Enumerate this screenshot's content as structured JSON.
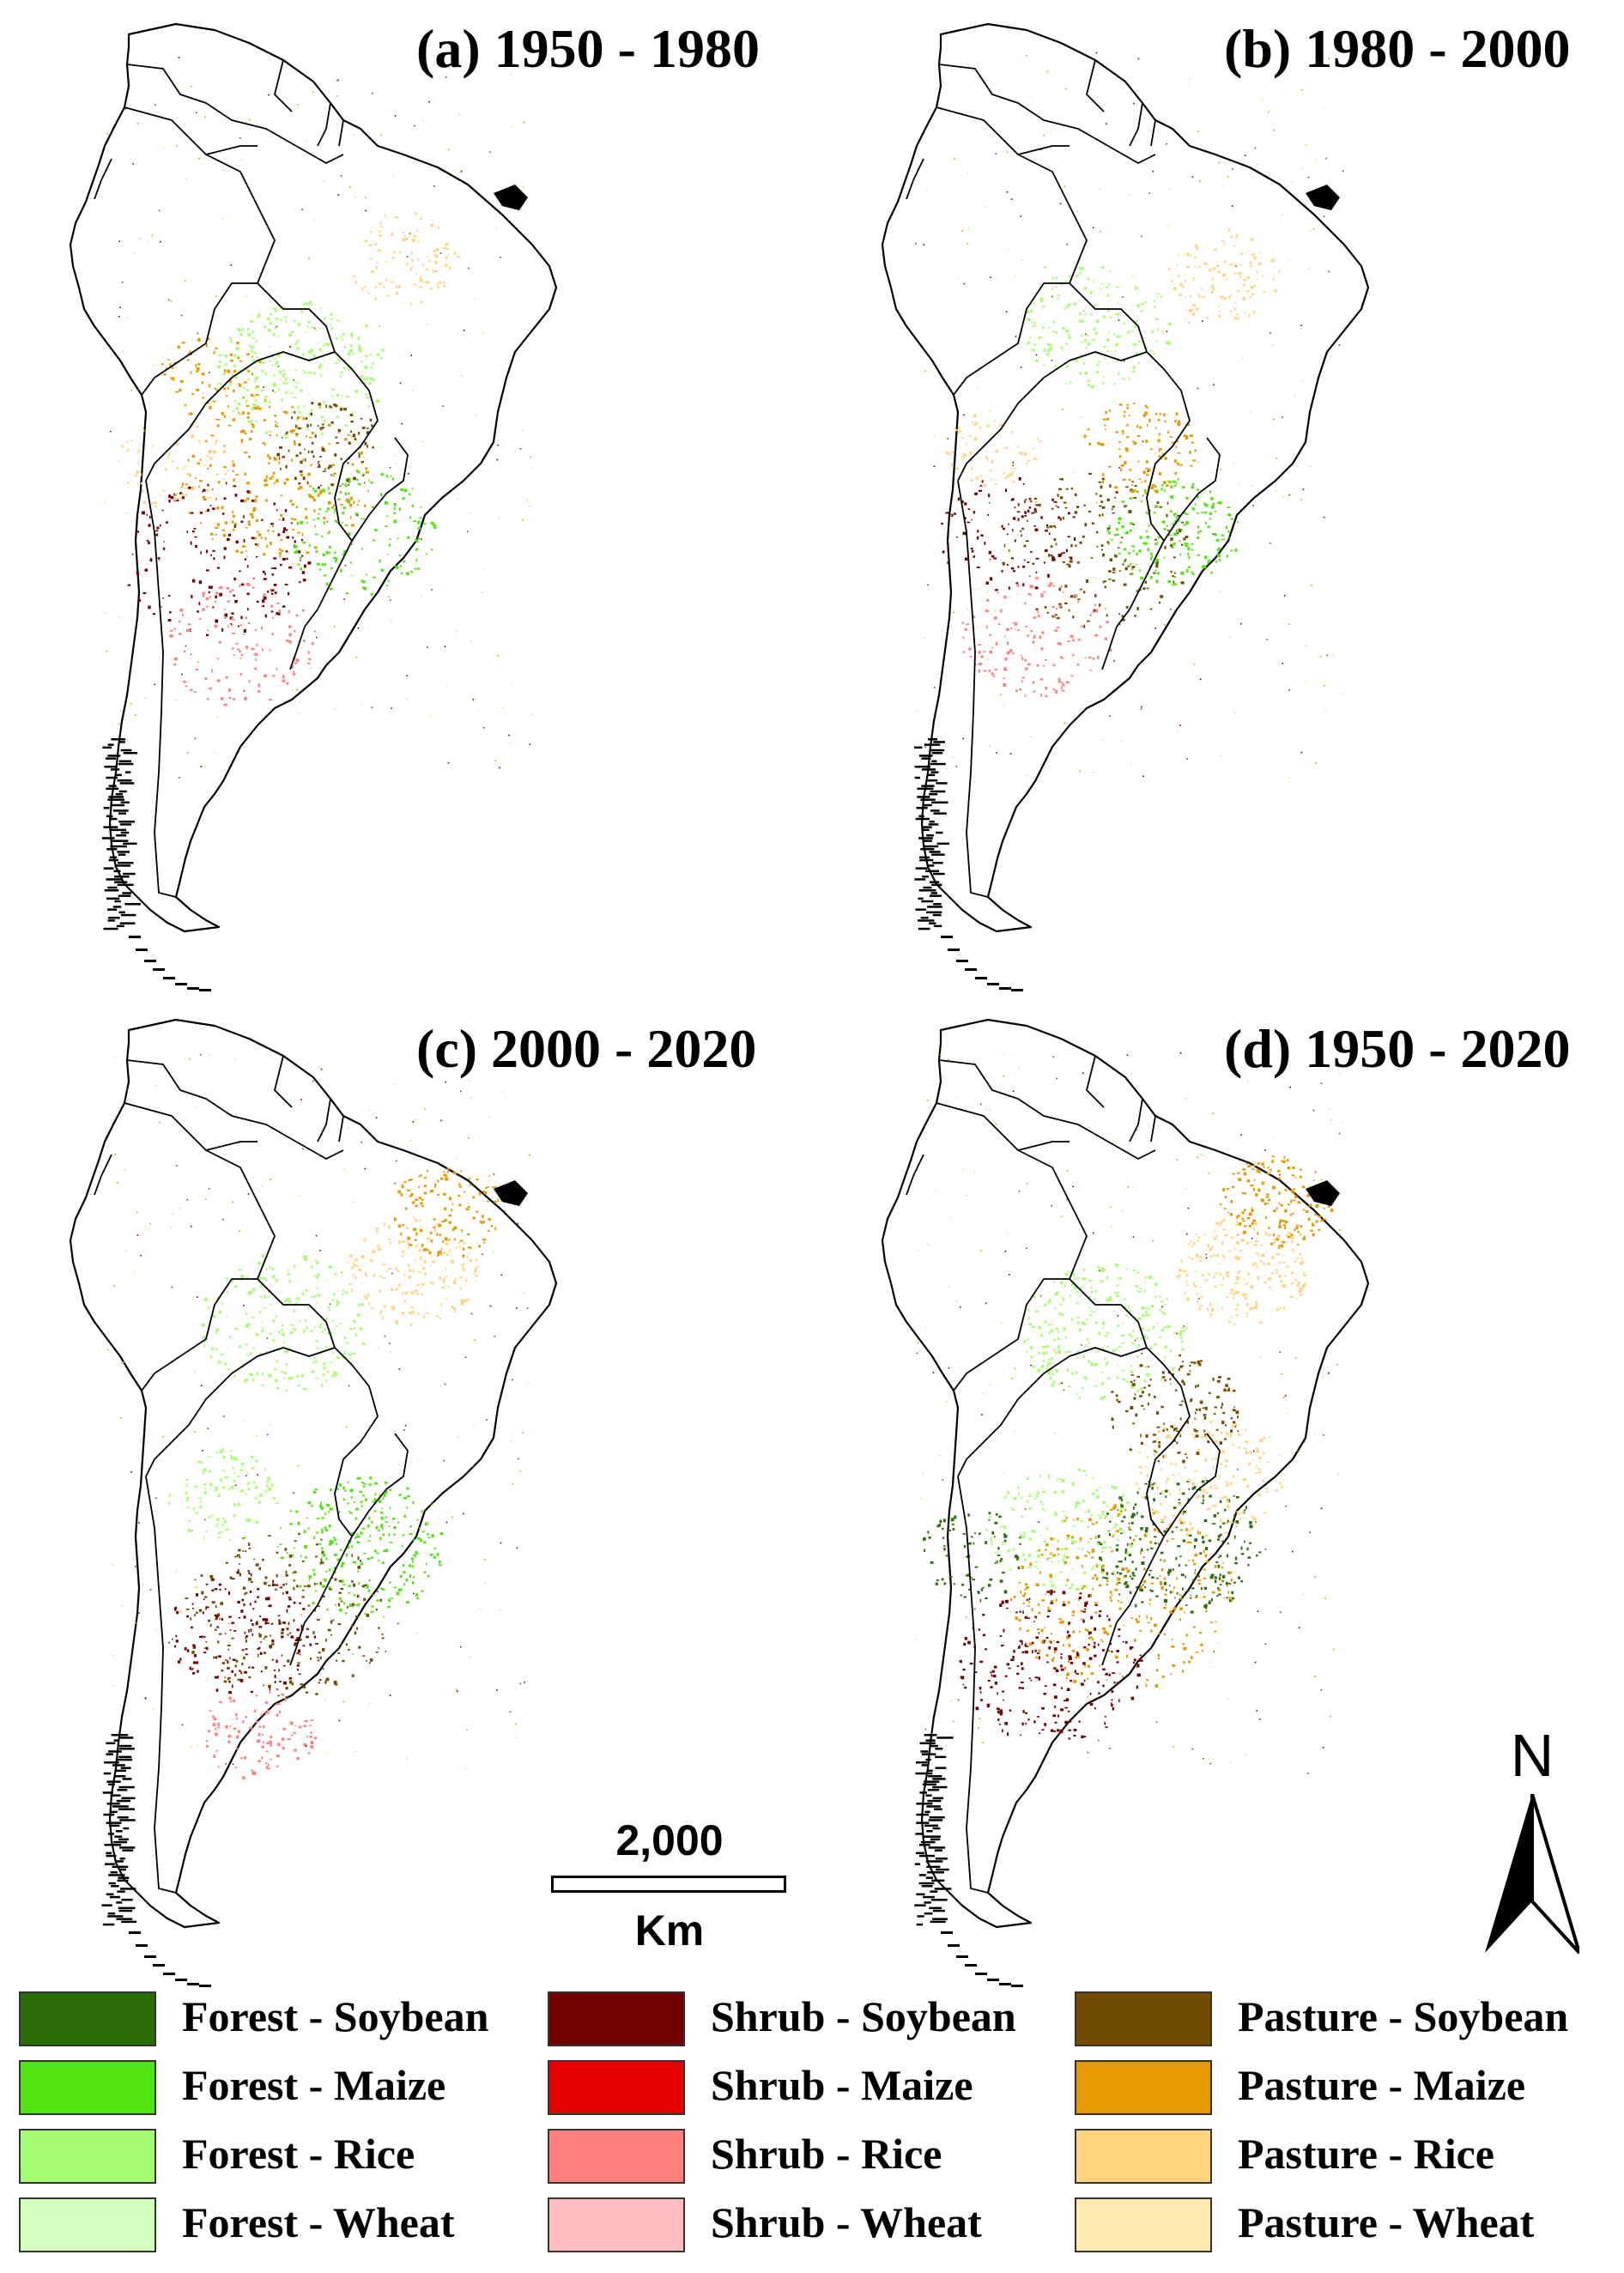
{
  "panels": [
    {
      "id": "a",
      "title": "(a) 1950 - 1980"
    },
    {
      "id": "b",
      "title": "(b) 1980 - 2000"
    },
    {
      "id": "c",
      "title": "(c) 2000 - 2020"
    },
    {
      "id": "d",
      "title": "(d) 1950 - 2020"
    }
  ],
  "scale": {
    "value": "2,000",
    "unit": "Km"
  },
  "north": {
    "label": "N"
  },
  "legend": [
    {
      "label": "Forest - Soybean",
      "color": "#2a6e0a"
    },
    {
      "label": "Forest - Maize",
      "color": "#4fe40f"
    },
    {
      "label": "Forest - Rice",
      "color": "#a6ff73"
    },
    {
      "label": "Forest - Wheat",
      "color": "#d3ffbe"
    },
    {
      "label": "Shrub - Soybean",
      "color": "#730000"
    },
    {
      "label": "Shrub - Maize",
      "color": "#e60000"
    },
    {
      "label": "Shrub - Rice",
      "color": "#ff7f7f"
    },
    {
      "label": "Shrub - Wheat",
      "color": "#ffbebe"
    },
    {
      "label": "Pasture - Soybean",
      "color": "#734c00"
    },
    {
      "label": "Pasture - Maize",
      "color": "#e69800"
    },
    {
      "label": "Pasture - Rice",
      "color": "#ffd37f"
    },
    {
      "label": "Pasture - Wheat",
      "color": "#ffebaf"
    }
  ]
}
